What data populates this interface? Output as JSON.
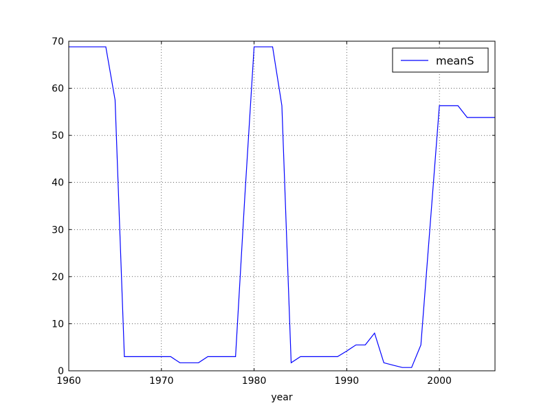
{
  "chart_data": {
    "type": "line",
    "title": "",
    "xlabel": "year",
    "ylabel": "",
    "xlim": [
      1960,
      2006
    ],
    "ylim": [
      0,
      70
    ],
    "xticks": [
      1960,
      1970,
      1980,
      1990,
      2000
    ],
    "yticks": [
      0,
      10,
      20,
      30,
      40,
      50,
      60,
      70
    ],
    "grid": true,
    "legend": "top-right",
    "series": [
      {
        "name": "meanS",
        "color": "#0000ff",
        "x": [
          1960,
          1961,
          1962,
          1963,
          1964,
          1965,
          1966,
          1967,
          1968,
          1969,
          1970,
          1971,
          1972,
          1973,
          1974,
          1975,
          1976,
          1977,
          1978,
          1979,
          1980,
          1981,
          1982,
          1983,
          1984,
          1985,
          1986,
          1987,
          1988,
          1989,
          1990,
          1991,
          1992,
          1993,
          1994,
          1995,
          1996,
          1997,
          1998,
          1999,
          2000,
          2001,
          2002,
          2003,
          2004,
          2005,
          2006
        ],
        "y": [
          68.8,
          68.8,
          68.8,
          68.8,
          68.8,
          57.5,
          3.0,
          3.0,
          3.0,
          3.0,
          3.0,
          3.0,
          1.7,
          1.7,
          1.7,
          3.0,
          3.0,
          3.0,
          3.0,
          37.0,
          68.8,
          68.8,
          68.8,
          56.3,
          1.7,
          3.0,
          3.0,
          3.0,
          3.0,
          3.0,
          4.2,
          5.5,
          5.5,
          8.0,
          1.7,
          1.2,
          0.7,
          0.7,
          5.5,
          31.0,
          56.3,
          56.3,
          56.3,
          53.8,
          53.8,
          53.8,
          53.8
        ]
      }
    ]
  }
}
